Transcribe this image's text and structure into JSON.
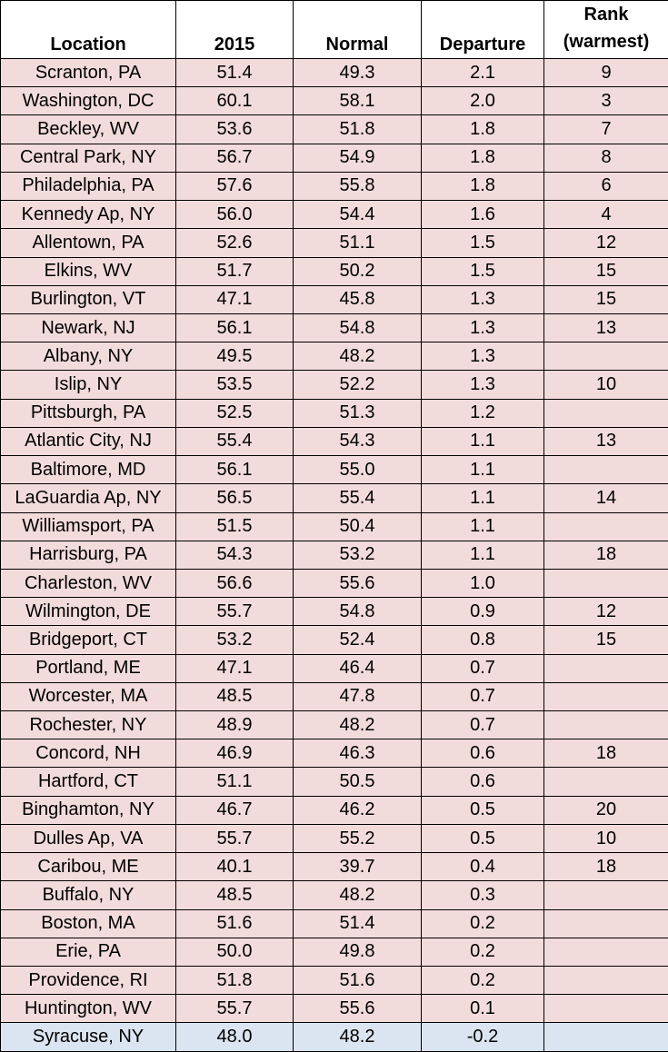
{
  "table": {
    "columns": [
      "Location",
      "2015",
      "Normal",
      "Departure",
      "Rank (warmest)"
    ],
    "rows": [
      [
        "Scranton, PA",
        "51.4",
        "49.3",
        "2.1",
        "9"
      ],
      [
        "Washington, DC",
        "60.1",
        "58.1",
        "2.0",
        "3"
      ],
      [
        "Beckley, WV",
        "53.6",
        "51.8",
        "1.8",
        "7"
      ],
      [
        "Central Park, NY",
        "56.7",
        "54.9",
        "1.8",
        "8"
      ],
      [
        "Philadelphia, PA",
        "57.6",
        "55.8",
        "1.8",
        "6"
      ],
      [
        "Kennedy Ap, NY",
        "56.0",
        "54.4",
        "1.6",
        "4"
      ],
      [
        "Allentown, PA",
        "52.6",
        "51.1",
        "1.5",
        "12"
      ],
      [
        "Elkins, WV",
        "51.7",
        "50.2",
        "1.5",
        "15"
      ],
      [
        "Burlington, VT",
        "47.1",
        "45.8",
        "1.3",
        "15"
      ],
      [
        "Newark, NJ",
        "56.1",
        "54.8",
        "1.3",
        "13"
      ],
      [
        "Albany, NY",
        "49.5",
        "48.2",
        "1.3",
        null
      ],
      [
        "Islip, NY",
        "53.5",
        "52.2",
        "1.3",
        "10"
      ],
      [
        "Pittsburgh, PA",
        "52.5",
        "51.3",
        "1.2",
        null
      ],
      [
        "Atlantic City, NJ",
        "55.4",
        "54.3",
        "1.1",
        "13"
      ],
      [
        "Baltimore, MD",
        "56.1",
        "55.0",
        "1.1",
        null
      ],
      [
        "LaGuardia Ap, NY",
        "56.5",
        "55.4",
        "1.1",
        "14"
      ],
      [
        "Williamsport, PA",
        "51.5",
        "50.4",
        "1.1",
        null
      ],
      [
        "Harrisburg, PA",
        "54.3",
        "53.2",
        "1.1",
        "18"
      ],
      [
        "Charleston, WV",
        "56.6",
        "55.6",
        "1.0",
        null
      ],
      [
        "Wilmington, DE",
        "55.7",
        "54.8",
        "0.9",
        "12"
      ],
      [
        "Bridgeport, CT",
        "53.2",
        "52.4",
        "0.8",
        "15"
      ],
      [
        "Portland, ME",
        "47.1",
        "46.4",
        "0.7",
        null
      ],
      [
        "Worcester, MA",
        "48.5",
        "47.8",
        "0.7",
        null
      ],
      [
        "Rochester, NY",
        "48.9",
        "48.2",
        "0.7",
        null
      ],
      [
        "Concord, NH",
        "46.9",
        "46.3",
        "0.6",
        "18"
      ],
      [
        "Hartford, CT",
        "51.1",
        "50.5",
        "0.6",
        null
      ],
      [
        "Binghamton, NY",
        "46.7",
        "46.2",
        "0.5",
        "20"
      ],
      [
        "Dulles Ap, VA",
        "55.7",
        "55.2",
        "0.5",
        "10"
      ],
      [
        "Caribou, ME",
        "40.1",
        "39.7",
        "0.4",
        "18"
      ],
      [
        "Buffalo, NY",
        "48.5",
        "48.2",
        "0.3",
        null
      ],
      [
        "Boston, MA",
        "51.6",
        "51.4",
        "0.2",
        null
      ],
      [
        "Erie, PA",
        "50.0",
        "49.8",
        "0.2",
        null
      ],
      [
        "Providence, RI",
        "51.8",
        "51.6",
        "0.2",
        null
      ],
      [
        "Huntington, WV",
        "55.7",
        "55.6",
        "0.1",
        null
      ],
      [
        "Syracuse, NY",
        "48.0",
        "48.2",
        "-0.2",
        null
      ]
    ]
  }
}
